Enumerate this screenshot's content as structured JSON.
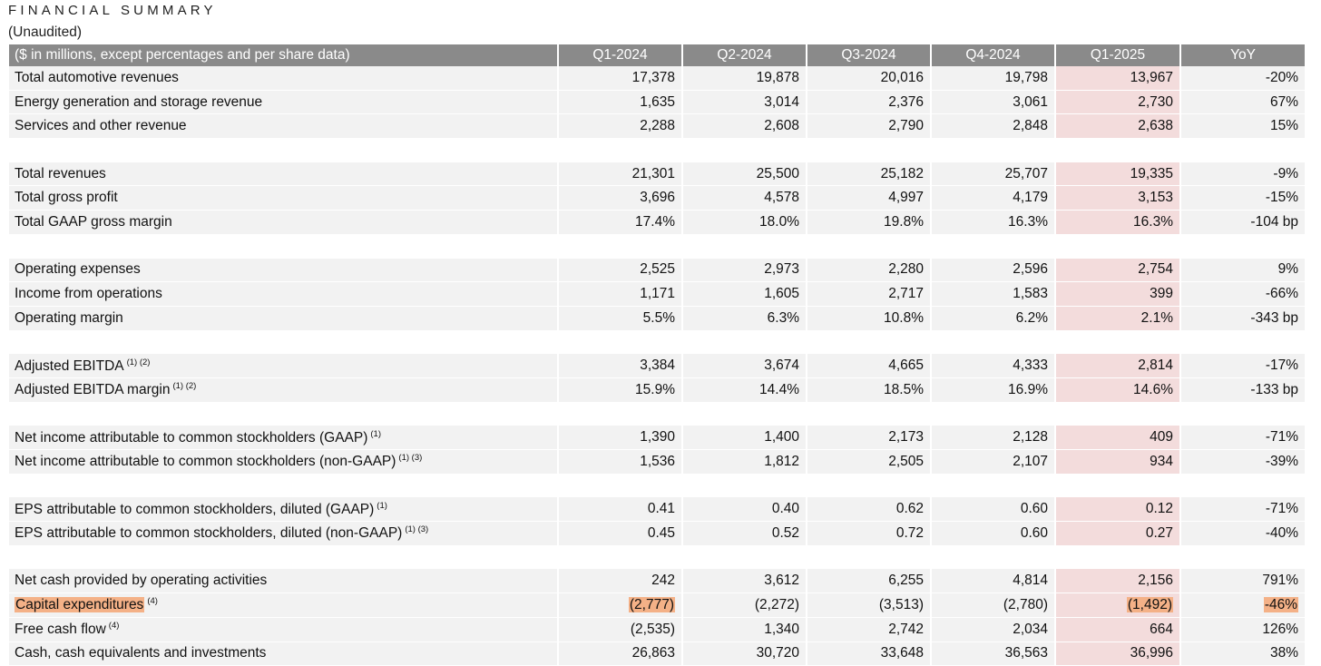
{
  "header": {
    "title": "FINANCIAL SUMMARY",
    "subtitle": "(Unaudited)"
  },
  "table": {
    "header_label": "($ in millions, except percentages and per share data)",
    "columns": [
      "Q1-2024",
      "Q2-2024",
      "Q3-2024",
      "Q4-2024",
      "Q1-2025",
      "YoY"
    ],
    "groups": [
      [
        {
          "label": "Total automotive revenues",
          "sup": "",
          "values": [
            "17,378",
            "19,878",
            "20,016",
            "19,798",
            "13,967",
            "-20%"
          ]
        },
        {
          "label": "Energy generation and storage revenue",
          "sup": "",
          "values": [
            "1,635",
            "3,014",
            "2,376",
            "3,061",
            "2,730",
            "67%"
          ]
        },
        {
          "label": "Services and other revenue",
          "sup": "",
          "values": [
            "2,288",
            "2,608",
            "2,790",
            "2,848",
            "2,638",
            "15%"
          ]
        }
      ],
      [
        {
          "label": "Total revenues",
          "sup": "",
          "values": [
            "21,301",
            "25,500",
            "25,182",
            "25,707",
            "19,335",
            "-9%"
          ]
        },
        {
          "label": "Total gross profit",
          "sup": "",
          "values": [
            "3,696",
            "4,578",
            "4,997",
            "4,179",
            "3,153",
            "-15%"
          ]
        },
        {
          "label": "Total GAAP gross margin",
          "sup": "",
          "values": [
            "17.4%",
            "18.0%",
            "19.8%",
            "16.3%",
            "16.3%",
            "-104 bp"
          ]
        }
      ],
      [
        {
          "label": "Operating expenses",
          "sup": "",
          "values": [
            "2,525",
            "2,973",
            "2,280",
            "2,596",
            "2,754",
            "9%"
          ]
        },
        {
          "label": "Income from operations",
          "sup": "",
          "values": [
            "1,171",
            "1,605",
            "2,717",
            "1,583",
            "399",
            "-66%"
          ]
        },
        {
          "label": "Operating margin",
          "sup": "",
          "values": [
            "5.5%",
            "6.3%",
            "10.8%",
            "6.2%",
            "2.1%",
            "-343 bp"
          ]
        }
      ],
      [
        {
          "label": "Adjusted EBITDA",
          "sup": "(1) (2)",
          "values": [
            "3,384",
            "3,674",
            "4,665",
            "4,333",
            "2,814",
            "-17%"
          ]
        },
        {
          "label": "Adjusted EBITDA margin",
          "sup": "(1) (2)",
          "values": [
            "15.9%",
            "14.4%",
            "18.5%",
            "16.9%",
            "14.6%",
            "-133 bp"
          ]
        }
      ],
      [
        {
          "label": "Net income attributable to common stockholders (GAAP)",
          "sup": "(1)",
          "values": [
            "1,390",
            "1,400",
            "2,173",
            "2,128",
            "409",
            "-71%"
          ]
        },
        {
          "label": "Net income attributable to common stockholders (non-GAAP)",
          "sup": "(1) (3)",
          "values": [
            "1,536",
            "1,812",
            "2,505",
            "2,107",
            "934",
            "-39%"
          ]
        }
      ],
      [
        {
          "label": "EPS attributable to common stockholders, diluted (GAAP)",
          "sup": "(1)",
          "values": [
            "0.41",
            "0.40",
            "0.62",
            "0.60",
            "0.12",
            "-71%"
          ]
        },
        {
          "label": "EPS attributable to common stockholders, diluted (non-GAAP)",
          "sup": "(1) (3)",
          "values": [
            "0.45",
            "0.52",
            "0.72",
            "0.60",
            "0.27",
            "-40%"
          ]
        }
      ],
      [
        {
          "label": "Net cash provided by operating activities",
          "sup": "",
          "values": [
            "242",
            "3,612",
            "6,255",
            "4,814",
            "2,156",
            "791%"
          ]
        },
        {
          "label": "Capital expenditures",
          "sup": "(4)",
          "highlighted": true,
          "values": [
            "(2,777)",
            "(2,272)",
            "(3,513)",
            "(2,780)",
            "(1,492)",
            "-46%"
          ]
        },
        {
          "label": "Free cash flow",
          "sup": "(4)",
          "values": [
            "(2,535)",
            "1,340",
            "2,742",
            "2,034",
            "664",
            "126%"
          ]
        },
        {
          "label": "Cash, cash equivalents and investments",
          "sup": "",
          "values": [
            "26,863",
            "30,720",
            "33,648",
            "36,563",
            "36,996",
            "38%"
          ]
        }
      ]
    ]
  },
  "colors": {
    "header_bg": "#8a8a8a",
    "row_bg": "#f2f2f2",
    "current_quarter_bg": "#f3dcdc",
    "highlight": "#f4b187"
  }
}
